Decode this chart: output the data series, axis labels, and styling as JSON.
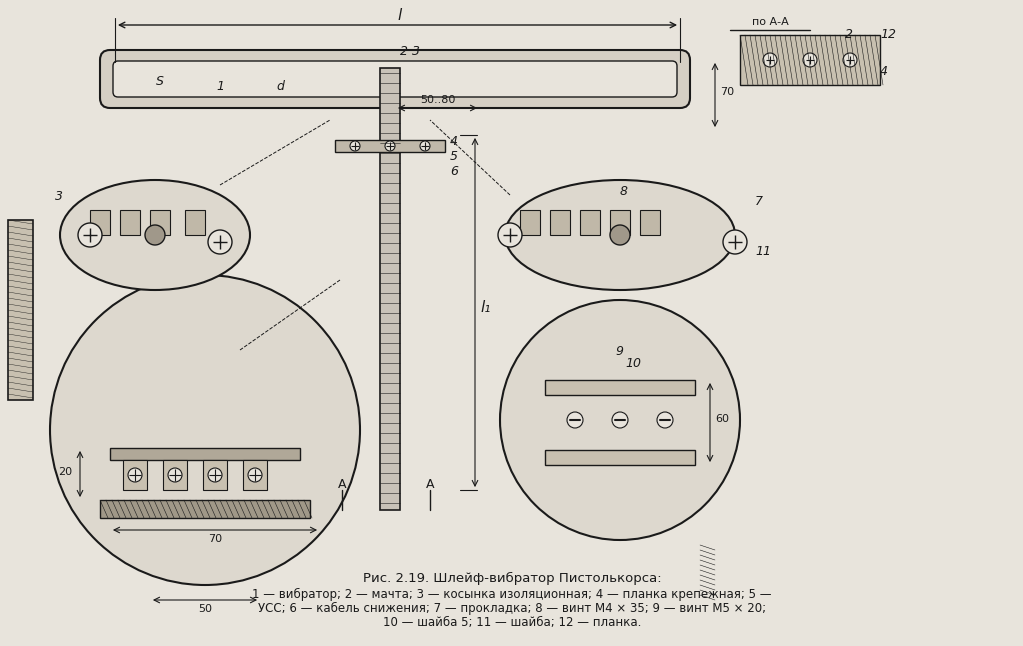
{
  "title": "Рис. 2.19. Шлейф-вибратор Пистолькорса:",
  "caption_line1": "1 — вибратор; 2 — мачта; 3 — косынка изоляционная; 4 — планка крепежная; 5 —",
  "caption_line2": "УСС; 6 — кабель снижения; 7 — прокладка; 8 — винт М4 × 35; 9 — винт М5 × 20;",
  "caption_line3": "10 — шайба 5; 11 — шайба; 12 — планка.",
  "bg_color": "#e8e4dc",
  "line_color": "#1a1a1a",
  "hatch_color": "#1a1a1a"
}
